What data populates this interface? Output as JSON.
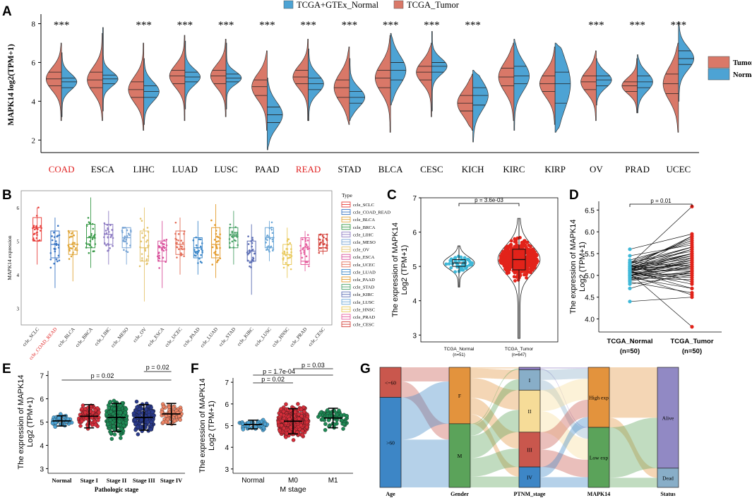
{
  "colors": {
    "normal": "#4DA3D4",
    "tumor": "#D97868"
  },
  "panel_letters": [
    "A",
    "B",
    "C",
    "D",
    "E",
    "F",
    "G"
  ],
  "chart_data": [
    {
      "id": "A",
      "type": "violin",
      "legend_top": [
        "TCGA+GTEx_Normal",
        "TCGA_Tumor"
      ],
      "legend_right": [
        "Tumor",
        "Normal"
      ],
      "ylabel": "MAPK14 log2(TPM+1)",
      "ylim": [
        1.5,
        8.2
      ],
      "yticks": [
        2,
        4,
        6,
        8
      ],
      "highlight": [
        "COAD",
        "READ"
      ],
      "categories": [
        "COAD",
        "ESCA",
        "LIHC",
        "LUAD",
        "LUSC",
        "PAAD",
        "READ",
        "STAD",
        "BLCA",
        "CESC",
        "KICH",
        "KIRC",
        "KIRP",
        "OV",
        "PRAD",
        "UCEC"
      ],
      "significance": [
        "***",
        "",
        "***",
        "***",
        "***",
        "***",
        "***",
        "***",
        "***",
        "***",
        "***",
        "",
        "",
        "***",
        "***",
        "***"
      ],
      "tumor": [
        {
          "min": 3.0,
          "q1": 4.8,
          "med": 5.15,
          "q3": 5.5,
          "max": 7.0
        },
        {
          "min": 3.0,
          "q1": 4.7,
          "med": 5.1,
          "q3": 5.5,
          "max": 7.5
        },
        {
          "min": 2.5,
          "q1": 4.2,
          "med": 4.6,
          "q3": 5.0,
          "max": 7.0
        },
        {
          "min": 3.0,
          "q1": 4.9,
          "med": 5.3,
          "q3": 5.6,
          "max": 7.4
        },
        {
          "min": 3.2,
          "q1": 4.9,
          "med": 5.3,
          "q3": 5.6,
          "max": 7.2
        },
        {
          "min": 2.5,
          "q1": 4.3,
          "med": 4.75,
          "q3": 5.1,
          "max": 6.6
        },
        {
          "min": 3.0,
          "q1": 4.9,
          "med": 5.25,
          "q3": 5.6,
          "max": 7.2
        },
        {
          "min": 2.8,
          "q1": 4.2,
          "med": 4.7,
          "q3": 5.1,
          "max": 6.8
        },
        {
          "min": 2.4,
          "q1": 4.7,
          "med": 5.2,
          "q3": 5.6,
          "max": 7.4
        },
        {
          "min": 3.2,
          "q1": 5.1,
          "med": 5.5,
          "q3": 5.8,
          "max": 7.0
        },
        {
          "min": 2.5,
          "q1": 3.5,
          "med": 3.9,
          "q3": 4.3,
          "max": 5.4
        },
        {
          "min": 3.0,
          "q1": 4.8,
          "med": 5.25,
          "q3": 5.7,
          "max": 7.0
        },
        {
          "min": 2.8,
          "q1": 4.5,
          "med": 4.9,
          "q3": 5.3,
          "max": 6.8
        },
        {
          "min": 3.0,
          "q1": 4.6,
          "med": 5.0,
          "q3": 5.3,
          "max": 6.6
        },
        {
          "min": 3.4,
          "q1": 4.5,
          "med": 4.8,
          "q3": 5.0,
          "max": 6.2
        },
        {
          "min": 2.4,
          "q1": 4.4,
          "med": 4.9,
          "q3": 5.4,
          "max": 7.0
        }
      ],
      "normal": [
        {
          "min": 3.2,
          "q1": 4.7,
          "med": 5.0,
          "q3": 5.2,
          "max": 6.5
        },
        {
          "min": 3.5,
          "q1": 4.9,
          "med": 5.15,
          "q3": 5.35,
          "max": 7.8
        },
        {
          "min": 2.8,
          "q1": 4.2,
          "med": 4.5,
          "q3": 4.8,
          "max": 6.2
        },
        {
          "min": 3.6,
          "q1": 5.0,
          "med": 5.25,
          "q3": 5.5,
          "max": 7.1
        },
        {
          "min": 3.6,
          "q1": 5.0,
          "med": 5.2,
          "q3": 5.4,
          "max": 7.0
        },
        {
          "min": 1.5,
          "q1": 2.9,
          "med": 3.3,
          "q3": 3.7,
          "max": 5.2
        },
        {
          "min": 3.0,
          "q1": 4.6,
          "med": 4.9,
          "q3": 5.2,
          "max": 6.7
        },
        {
          "min": 3.0,
          "q1": 3.9,
          "med": 4.2,
          "q3": 4.5,
          "max": 6.2
        },
        {
          "min": 3.8,
          "q1": 5.1,
          "med": 5.6,
          "q3": 6.0,
          "max": 7.5
        },
        {
          "min": 3.5,
          "q1": 5.5,
          "med": 5.8,
          "q3": 6.0,
          "max": 7.6
        },
        {
          "min": 1.9,
          "q1": 3.8,
          "med": 4.3,
          "q3": 4.7,
          "max": 5.6
        },
        {
          "min": 2.5,
          "q1": 4.9,
          "med": 5.3,
          "q3": 5.8,
          "max": 7.2
        },
        {
          "min": 2.4,
          "q1": 3.9,
          "med": 4.9,
          "q3": 5.5,
          "max": 7.0
        },
        {
          "min": 3.8,
          "q1": 4.8,
          "med": 5.1,
          "q3": 5.3,
          "max": 6.2
        },
        {
          "min": 3.4,
          "q1": 4.7,
          "med": 5.0,
          "q3": 5.3,
          "max": 6.4
        },
        {
          "min": 4.0,
          "q1": 5.9,
          "med": 6.2,
          "q3": 6.6,
          "max": 8.1
        }
      ]
    },
    {
      "id": "B",
      "type": "box",
      "ylabel": "MAPK14 expression",
      "ylim": [
        2.5,
        6.5
      ],
      "yticks": [
        3,
        4,
        5,
        6
      ],
      "legend_title": "Type",
      "categories": [
        "ccle_SCLC",
        "ccle_COAD_READ",
        "ccle_BLCA",
        "ccle_BRCA",
        "ccle_LIHC",
        "ccle_MESO",
        "ccle_OV",
        "ccle_ESCA",
        "ccle_UCEC",
        "ccle_PAAD",
        "ccle_LUAD",
        "ccle_STAD",
        "ccle_KIRC",
        "ccle_LUSC",
        "ccle_HNSC",
        "ccle_PRAD",
        "ccle_CESC"
      ],
      "highlight": [
        "ccle_COAD_READ"
      ],
      "legend_items": [
        "ccle_SCLC",
        "ccle_COAD_READ",
        "ccle_BLCA",
        "ccle_BRCA",
        "ccle_LIHC",
        "ccle_MESO",
        "ccle_OV",
        "ccle_ESCA",
        "ccle_UCEC",
        "ccle_LUAD",
        "ccle_PAAD",
        "ccle_STAD",
        "ccle_KIRC",
        "ccle_LUSC",
        "ccle_HNSC",
        "ccle_PRAD",
        "ccle_CESC"
      ],
      "box_colors": [
        "#E8413D",
        "#3B76C4",
        "#E0A63A",
        "#3C9B4B",
        "#8E7CC3",
        "#7AA6D6",
        "#E4C46F",
        "#D9529C",
        "#E36F5A",
        "#3E88C9",
        "#E39A2C",
        "#4CA36A",
        "#5B6DB4",
        "#6FA9D8",
        "#E9C95B",
        "#E6609F",
        "#D4433C"
      ],
      "boxes": [
        {
          "min": 4.3,
          "q1": 5.0,
          "med": 5.4,
          "q3": 5.7,
          "max": 6.0
        },
        {
          "min": 3.6,
          "q1": 4.5,
          "med": 4.9,
          "q3": 5.3,
          "max": 5.7
        },
        {
          "min": 3.8,
          "q1": 4.6,
          "med": 4.9,
          "q3": 5.3,
          "max": 5.3
        },
        {
          "min": 4.2,
          "q1": 4.8,
          "med": 5.1,
          "q3": 5.5,
          "max": 6.3
        },
        {
          "min": 4.3,
          "q1": 4.9,
          "med": 5.2,
          "q3": 5.5,
          "max": 5.9
        },
        {
          "min": 4.3,
          "q1": 4.8,
          "med": 5.1,
          "q3": 5.4,
          "max": 5.4
        },
        {
          "min": 3.2,
          "q1": 4.4,
          "med": 4.8,
          "q3": 5.3,
          "max": 6.0
        },
        {
          "min": 3.6,
          "q1": 4.4,
          "med": 4.8,
          "q3": 5.0,
          "max": 5.6
        },
        {
          "min": 4.0,
          "q1": 4.6,
          "med": 4.9,
          "q3": 5.3,
          "max": 5.7
        },
        {
          "min": 4.0,
          "q1": 4.5,
          "med": 4.8,
          "q3": 5.1,
          "max": 5.6
        },
        {
          "min": 3.9,
          "q1": 4.5,
          "med": 4.9,
          "q3": 5.4,
          "max": 6.1
        },
        {
          "min": 4.3,
          "q1": 4.8,
          "med": 5.2,
          "q3": 5.4,
          "max": 5.9
        },
        {
          "min": 3.4,
          "q1": 4.4,
          "med": 4.7,
          "q3": 5.0,
          "max": 5.5
        },
        {
          "min": 4.4,
          "q1": 4.8,
          "med": 5.1,
          "q3": 5.4,
          "max": 5.6
        },
        {
          "min": 3.9,
          "q1": 4.3,
          "med": 4.6,
          "q3": 4.9,
          "max": 5.4
        },
        {
          "min": 4.1,
          "q1": 4.3,
          "med": 4.4,
          "q3": 5.1,
          "max": 5.3
        },
        {
          "min": 4.6,
          "q1": 4.7,
          "med": 4.8,
          "q3": 5.2,
          "max": 5.2
        }
      ]
    },
    {
      "id": "C",
      "type": "scatter_violin",
      "ylabel": [
        "The expression of MAPK14",
        "Log2 (TPM+1)"
      ],
      "ylim": [
        2.8,
        7.0
      ],
      "yticks": [
        3,
        4,
        5,
        6,
        7
      ],
      "categories": [
        "TCGA_Normal",
        "TCGA_Tumor"
      ],
      "counts": [
        "(n=51)",
        "(n=647)"
      ],
      "pvalue": "p = 3.6e-03",
      "groups": [
        {
          "n": 51,
          "mean": 5.1,
          "sd": 0.2,
          "min": 4.4,
          "max": 5.6,
          "q1": 5.0,
          "med": 5.1,
          "q3": 5.2
        },
        {
          "n": 647,
          "mean": 5.2,
          "sd": 0.45,
          "min": 2.9,
          "max": 6.4,
          "q1": 4.9,
          "med": 5.2,
          "q3": 5.5
        }
      ]
    },
    {
      "id": "D",
      "type": "paired",
      "ylabel": [
        "The expression of MAPK14",
        "Log2 (TPM+1)"
      ],
      "ylim": [
        3.7,
        6.7
      ],
      "yticks": [
        4.0,
        4.5,
        5.0,
        5.5,
        6.0,
        6.5
      ],
      "categories": [
        "TCGA_Normal",
        "TCGA_Tumor"
      ],
      "counts": [
        "(n=50)",
        "(n=50)"
      ],
      "pvalue": "p = 0.01",
      "pairs": [
        [
          5.05,
          5.3
        ],
        [
          5.12,
          5.6
        ],
        [
          4.95,
          4.9
        ],
        [
          5.2,
          5.5
        ],
        [
          4.4,
          4.5
        ],
        [
          5.3,
          5.8
        ],
        [
          5.0,
          5.2
        ],
        [
          5.1,
          4.7
        ],
        [
          5.15,
          5.4
        ],
        [
          4.9,
          5.1
        ],
        [
          5.25,
          6.58
        ],
        [
          5.05,
          5.0
        ],
        [
          4.85,
          4.6
        ],
        [
          5.18,
          5.45
        ],
        [
          5.0,
          5.3
        ],
        [
          5.1,
          5.9
        ],
        [
          5.3,
          5.2
        ],
        [
          4.95,
          5.25
        ],
        [
          5.22,
          5.65
        ],
        [
          5.08,
          4.8
        ],
        [
          5.12,
          5.35
        ],
        [
          5.0,
          5.05
        ],
        [
          5.35,
          5.75
        ],
        [
          4.8,
          5.0
        ],
        [
          5.15,
          5.5
        ],
        [
          5.05,
          3.82
        ],
        [
          5.2,
          5.15
        ],
        [
          4.98,
          5.4
        ],
        [
          5.6,
          5.95
        ],
        [
          5.1,
          5.3
        ],
        [
          5.0,
          4.55
        ],
        [
          5.25,
          5.85
        ],
        [
          5.15,
          5.1
        ],
        [
          4.92,
          5.2
        ],
        [
          5.07,
          5.45
        ],
        [
          5.3,
          5.55
        ],
        [
          5.45,
          5.7
        ],
        [
          5.02,
          4.95
        ],
        [
          5.18,
          5.6
        ],
        [
          4.7,
          5.1
        ],
        [
          5.12,
          5.25
        ],
        [
          5.0,
          5.35
        ],
        [
          5.22,
          4.85
        ],
        [
          5.1,
          5.5
        ],
        [
          4.88,
          5.05
        ],
        [
          5.28,
          5.65
        ],
        [
          5.05,
          5.15
        ],
        [
          5.16,
          5.4
        ],
        [
          4.95,
          4.7
        ],
        [
          5.2,
          5.9
        ]
      ]
    },
    {
      "id": "E",
      "type": "dot_error",
      "xlabel": "Pathologic stage",
      "ylabel": [
        "The expression of MAPK14",
        "Log2 (TPM+1)"
      ],
      "ylim": [
        2.8,
        7.2
      ],
      "yticks": [
        3,
        4,
        5,
        6,
        7
      ],
      "categories": [
        "Normal",
        "Stage I",
        "Stage II",
        "Stage III",
        "Stage IV"
      ],
      "colors": [
        "#4DA3D4",
        "#D62E3A",
        "#1E8A55",
        "#2A3A8C",
        "#EE8566"
      ],
      "groups": [
        {
          "n": 51,
          "mean": 5.05,
          "sd": 0.22,
          "min": 4.5,
          "max": 5.6
        },
        {
          "n": 90,
          "mean": 5.25,
          "sd": 0.5,
          "min": 4.1,
          "max": 6.4
        },
        {
          "n": 210,
          "mean": 5.2,
          "sd": 0.6,
          "min": 2.9,
          "max": 6.7
        },
        {
          "n": 150,
          "mean": 5.2,
          "sd": 0.55,
          "min": 3.2,
          "max": 6.3
        },
        {
          "n": 70,
          "mean": 5.35,
          "sd": 0.45,
          "min": 4.2,
          "max": 6.6
        }
      ],
      "comparisons": [
        {
          "from": 0,
          "to": 4,
          "label": "p = 0.02"
        },
        {
          "from": 3,
          "to": 4,
          "label": "p = 0.02"
        }
      ]
    },
    {
      "id": "F",
      "type": "dot_error",
      "xlabel": "M stage",
      "ylabel": [
        "The expression of MAPK14",
        "Log2 (TPM+1)"
      ],
      "ylim": [
        2.8,
        7.2
      ],
      "yticks": [
        3,
        4,
        5,
        6,
        7
      ],
      "categories": [
        "Normal",
        "M0",
        "M1"
      ],
      "colors": [
        "#4DA3D4",
        "#D62E3A",
        "#1E8A55"
      ],
      "groups": [
        {
          "n": 51,
          "mean": 5.05,
          "sd": 0.2,
          "min": 4.5,
          "max": 5.5
        },
        {
          "n": 450,
          "mean": 5.2,
          "sd": 0.58,
          "min": 2.9,
          "max": 6.7
        },
        {
          "n": 70,
          "mean": 5.35,
          "sd": 0.45,
          "min": 4.2,
          "max": 6.5
        }
      ],
      "comparisons": [
        {
          "from": 0,
          "to": 1,
          "label": "p = 0.02"
        },
        {
          "from": 0,
          "to": 2,
          "label": "p = 1.7e-04"
        },
        {
          "from": 1,
          "to": 2,
          "label": "p = 0.03"
        }
      ]
    },
    {
      "id": "G",
      "type": "alluvial",
      "axes": [
        "Age",
        "Gender",
        "PTNM_stage",
        "MAPK14",
        "Status"
      ],
      "strata": [
        [
          {
            "label": "<=60",
            "frac": 0.25,
            "color": "#C9574D"
          },
          {
            "label": ">60",
            "frac": 0.75,
            "color": "#3D86C6"
          }
        ],
        [
          {
            "label": "F",
            "frac": 0.47,
            "color": "#E3933D"
          },
          {
            "label": "M",
            "frac": 0.53,
            "color": "#5BA35A"
          }
        ],
        [
          {
            "label": "",
            "frac": 0.02,
            "color": "#8E7CC3"
          },
          {
            "label": "I",
            "frac": 0.17,
            "color": "#88AEC8"
          },
          {
            "label": "II",
            "frac": 0.35,
            "color": "#F6DC98"
          },
          {
            "label": "III",
            "frac": 0.29,
            "color": "#C9574D"
          },
          {
            "label": "IV",
            "frac": 0.17,
            "color": "#3D86C6"
          }
        ],
        [
          {
            "label": "High exp",
            "frac": 0.5,
            "color": "#E3933D"
          },
          {
            "label": "Low exp",
            "frac": 0.5,
            "color": "#5BA35A"
          }
        ],
        [
          {
            "label": "Alive",
            "frac": 0.84,
            "color": "#9189C4"
          },
          {
            "label": "Dead",
            "frac": 0.16,
            "color": "#88AEC8"
          }
        ]
      ]
    }
  ]
}
